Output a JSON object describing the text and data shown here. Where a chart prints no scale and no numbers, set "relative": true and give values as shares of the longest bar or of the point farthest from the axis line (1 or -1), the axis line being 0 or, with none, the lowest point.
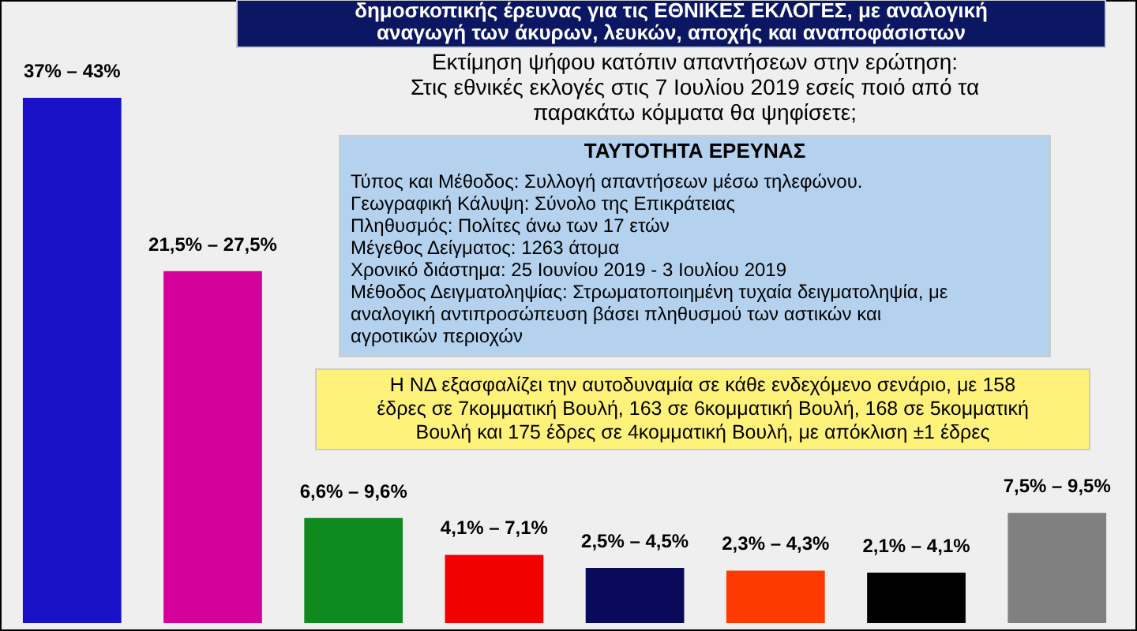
{
  "chart_data": {
    "type": "bar",
    "relative": true,
    "title": "δημοσκοπικής έρευνας για τις ΕΘΝΙΚΕΣ ΕΚΛΟΓΕΣ, με αναλογική\nαναγωγή των άκυρων, λευκών, αποχής και αναποφάσιστων",
    "subtitle": "Εκτίμηση ψήφου κατόπιν απαντήσεων στην ερώτηση:\nΣτις εθνικές εκλογές στις 7 Ιουλίου 2019 εσείς ποιό από τα\nπαρακάτω κόμματα θα ψηφίσετε;",
    "annotations": [
      "ΤΑΥΤΟΤΗΤΑ ΕΡΕΥΝΑΣ",
      "Τύπος και Μέθοδος: Συλλογή απαντήσεων μέσω τηλεφώνου.\nΓεωγραφική Κάλυψη: Σύνολο της Επικράτειας\nΠληθυσμός: Πολίτες άνω των 17 ετών\nΜέγεθος Δείγματος:  1263 άτομα\nΧρονικό διάστημα: 25 Ιουνίου 2019 - 3 Ιουλίου 2019\nΜέθοδος Δειγματοληψίας: Στρωματοποιημένη τυχαία δειγματοληψία, με\nαναλογική αντιπροσώπευση βάσει πληθυσμού των αστικών και\nαγροτικών περιοχών",
      "Η ΝΔ εξασφαλίζει την αυτοδυναμία σε κάθε ενδεχόμενο σενάριο, με 158\nέδρες σε 7κομματική Βουλή, 163 σε 6κομματική Βουλή, 168 σε 5κομματική\nΒουλή και 175 έδρες σε 4κομματική Βουλή, με απόκλιση ±1 έδρες",
      "37% –  43%",
      "21,5% –  27,5%",
      "6,6% –  9,6%",
      "4,1% –  7,1%",
      "2,5% –  4,5%",
      "2,3% –  4,3%",
      "2,1% –  4,1%",
      "7,5% –  9,5%"
    ],
    "categories": [
      null,
      null,
      null,
      null,
      null,
      null,
      null,
      null
    ],
    "values": [
      1,
      0.67,
      0.2,
      0.13,
      0.105,
      0.1,
      0.096,
      0.21
    ],
    "colors": [
      "#1a12c8",
      "#d4009a",
      "#0f8a1e",
      "#f20000",
      "#0a0a5a",
      "#ff3a00",
      "#000000",
      "#808080"
    ]
  }
}
